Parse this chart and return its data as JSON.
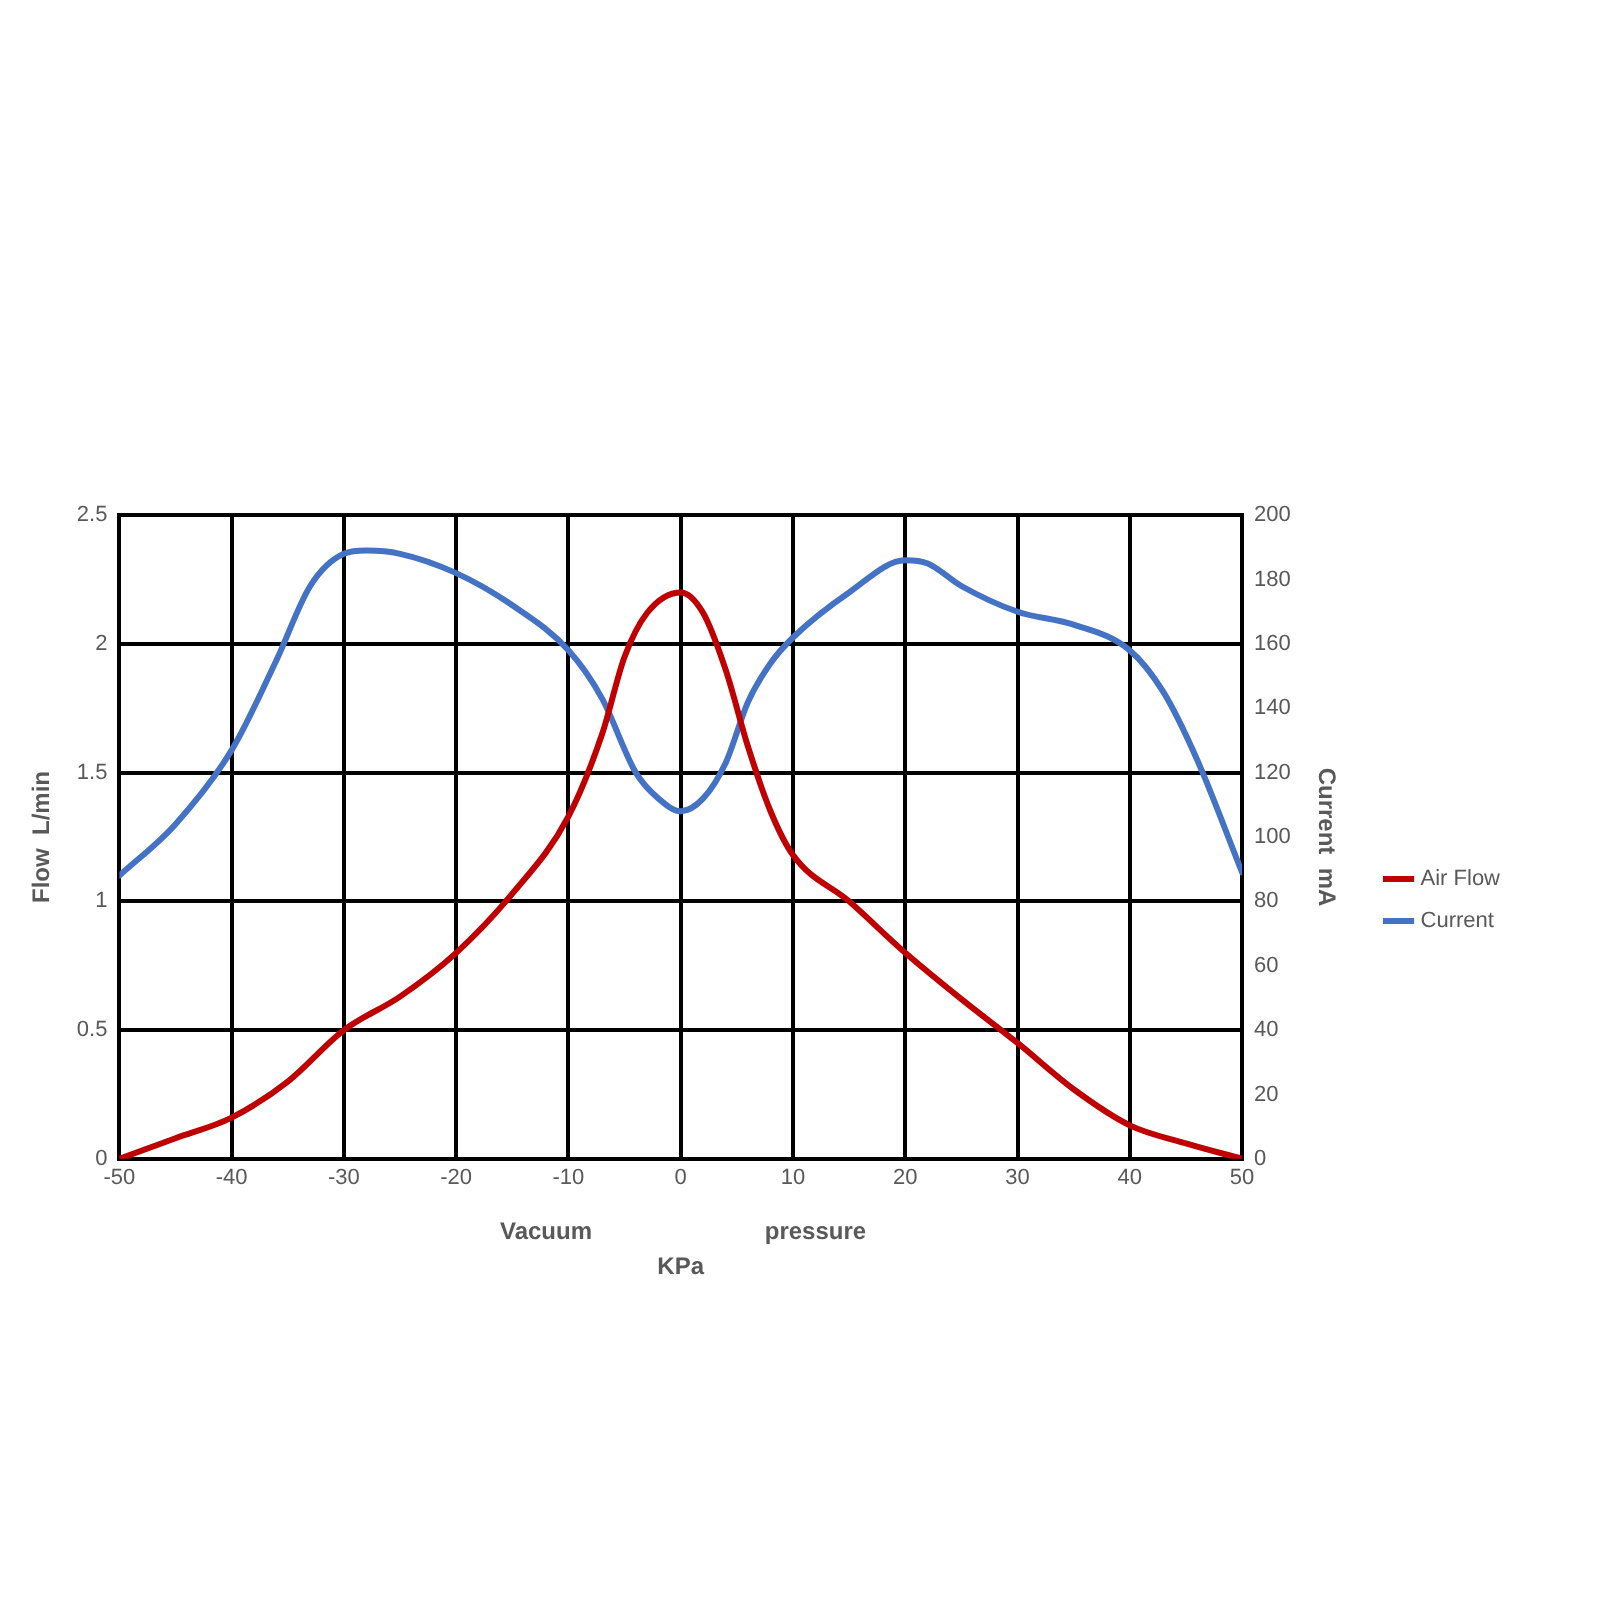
{
  "chart_data": {
    "type": "line",
    "xlabel": "KPa",
    "ylabel": "Flow  L/min",
    "y2label": "Current  mA",
    "annotations": [
      "Vacuum",
      "pressure"
    ],
    "xlim": [
      -50,
      50
    ],
    "xticks": [
      -50,
      -40,
      -30,
      -20,
      -10,
      0,
      10,
      20,
      30,
      40,
      50
    ],
    "ylim": [
      0,
      2.5
    ],
    "yticks": [
      0,
      0.5,
      1,
      1.5,
      2,
      2.5
    ],
    "y2lim": [
      0,
      200
    ],
    "y2ticks": [
      0,
      20,
      40,
      60,
      80,
      100,
      120,
      140,
      160,
      180,
      200
    ],
    "grid": true,
    "legend": "right",
    "marker": "none",
    "line_style": "solid",
    "series": [
      {
        "name": "Air Flow",
        "color": "#c00000",
        "x": [
          -50,
          -45,
          -40,
          -35,
          -30,
          -25,
          -20,
          -15,
          -10,
          -7,
          -5,
          -3,
          0,
          2,
          4,
          6,
          8,
          10,
          15,
          20,
          25,
          30,
          35,
          40,
          45,
          50
        ],
        "values": [
          0,
          0.08,
          0.16,
          0.3,
          0.5,
          0.63,
          0.8,
          1.03,
          1.33,
          1.65,
          1.95,
          2.12,
          2.2,
          2.12,
          1.9,
          1.6,
          1.35,
          1.18,
          1,
          0.8,
          0.62,
          0.45,
          0.27,
          0.13,
          0.06,
          0
        ]
      },
      {
        "name": "Current",
        "color": "#4472c4",
        "axis": "y2",
        "x": [
          -50,
          -45,
          -40,
          -36,
          -33,
          -30,
          -28,
          -25,
          -20,
          -15,
          -10,
          -7,
          -4,
          -2,
          0,
          2,
          4,
          6,
          8,
          10,
          15,
          20,
          22,
          25,
          30,
          35,
          40,
          43,
          46,
          50
        ],
        "values": [
          88,
          104,
          127,
          155,
          178,
          188,
          189,
          188,
          182,
          172,
          158,
          143,
          120,
          112,
          108,
          112,
          123,
          142,
          154,
          162,
          176,
          186,
          185,
          178,
          170,
          166,
          158,
          145,
          124,
          89
        ]
      }
    ]
  }
}
